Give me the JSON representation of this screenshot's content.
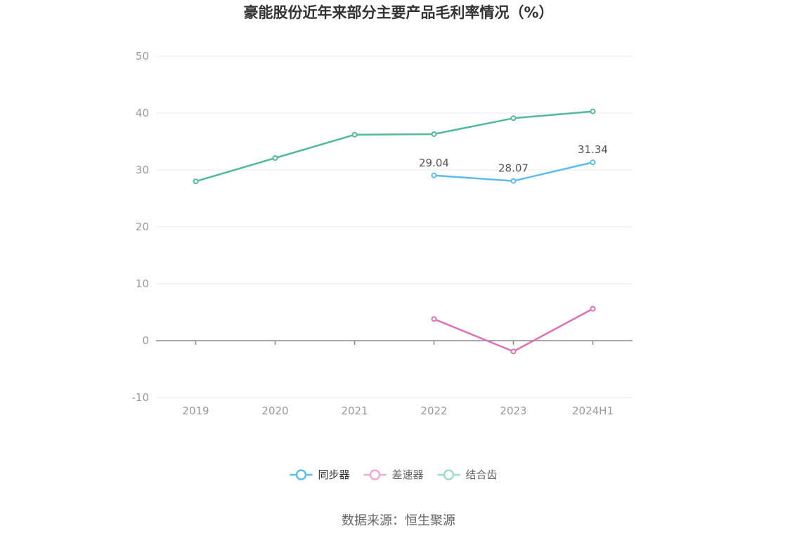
{
  "chart_data": {
    "type": "line",
    "title": "豪能股份近年来部分主要产品毛利率情况（%）",
    "categories": [
      "2019",
      "2020",
      "2021",
      "2022",
      "2023",
      "2024H1"
    ],
    "ylim": [
      -10,
      50
    ],
    "yticks": [
      -10,
      0,
      10,
      20,
      30,
      40,
      50
    ],
    "grid": true,
    "legend_position": "bottom",
    "series": [
      {
        "name": "同步器",
        "color": "#5bbdea",
        "values": [
          null,
          null,
          null,
          29.04,
          28.07,
          31.34
        ],
        "labels": [
          "",
          "",
          "",
          "29.04",
          "28.07",
          "31.34"
        ]
      },
      {
        "name": "差速器",
        "color": "#db72b5",
        "values": [
          null,
          null,
          null,
          3.8,
          -1.9,
          5.6
        ],
        "labels": [
          "",
          "",
          "",
          "",
          "",
          ""
        ]
      },
      {
        "name": "结合齿",
        "color": "#52b99a",
        "values": [
          28.0,
          32.1,
          36.2,
          36.3,
          39.1,
          40.3
        ],
        "labels": [
          "",
          "",
          "",
          "",
          "",
          ""
        ]
      }
    ]
  },
  "legend": {
    "items": [
      {
        "label": "同步器",
        "color": "#5bbdea"
      },
      {
        "label": "差速器",
        "color": "#f1aad3"
      },
      {
        "label": "结合齿",
        "color": "#9fdcc8"
      }
    ]
  },
  "source": "数据来源：恒生聚源"
}
